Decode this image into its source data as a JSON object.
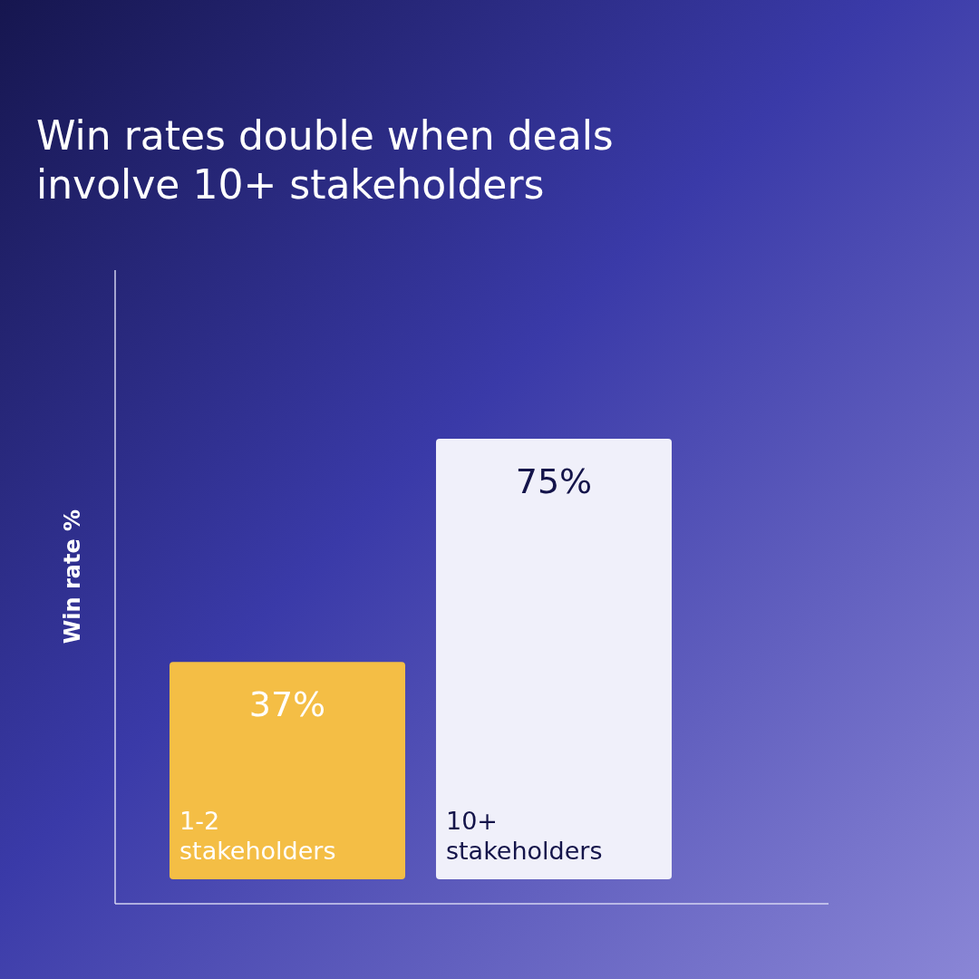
{
  "chart_data": {
    "type": "bar",
    "title": "Win rates double when deals involve 10+ stakeholders",
    "ylabel": "Win rate %",
    "categories": [
      "1-2 stakeholders",
      "10+ stakeholders"
    ],
    "values": [
      37,
      75
    ],
    "colors": [
      "#f4be45",
      "#f0f0fa"
    ],
    "value_labels": [
      "37%",
      "75%"
    ]
  }
}
